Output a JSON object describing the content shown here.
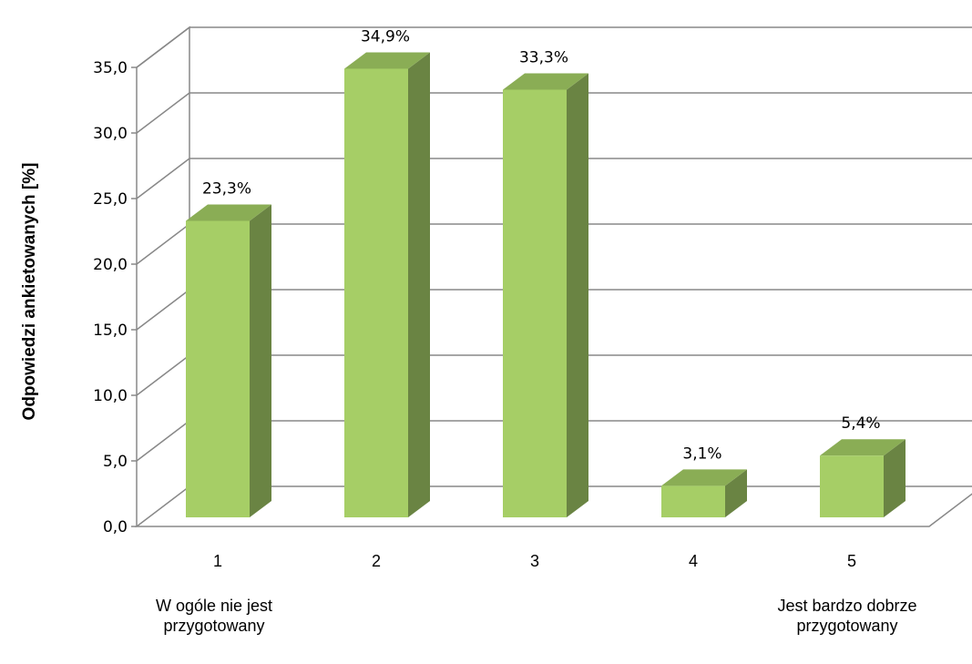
{
  "chart_data": {
    "type": "bar",
    "ylabel": "Odpowiedzi ankietowanych [%]",
    "ylim": [
      0,
      35
    ],
    "y_ticks": [
      "0,0",
      "5,0",
      "10,0",
      "15,0",
      "20,0",
      "25,0",
      "30,0",
      "35,0"
    ],
    "categories": [
      "1",
      "2",
      "3",
      "4",
      "5"
    ],
    "values": [
      23.3,
      34.9,
      33.3,
      3.1,
      5.4
    ],
    "data_labels": [
      "23,3%",
      "34,9%",
      "33,3%",
      "3,1%",
      "5,4%"
    ],
    "category_annotations": {
      "first": "W ogóle nie jest przygotowany",
      "last": "Jest bardzo dobrze przygotowany"
    },
    "grid": true,
    "style": "3d-column",
    "colors": {
      "bar_front": "#a6ce66",
      "bar_side": "#6a8443",
      "bar_top": "#8aad55",
      "grid": "#888888"
    }
  }
}
